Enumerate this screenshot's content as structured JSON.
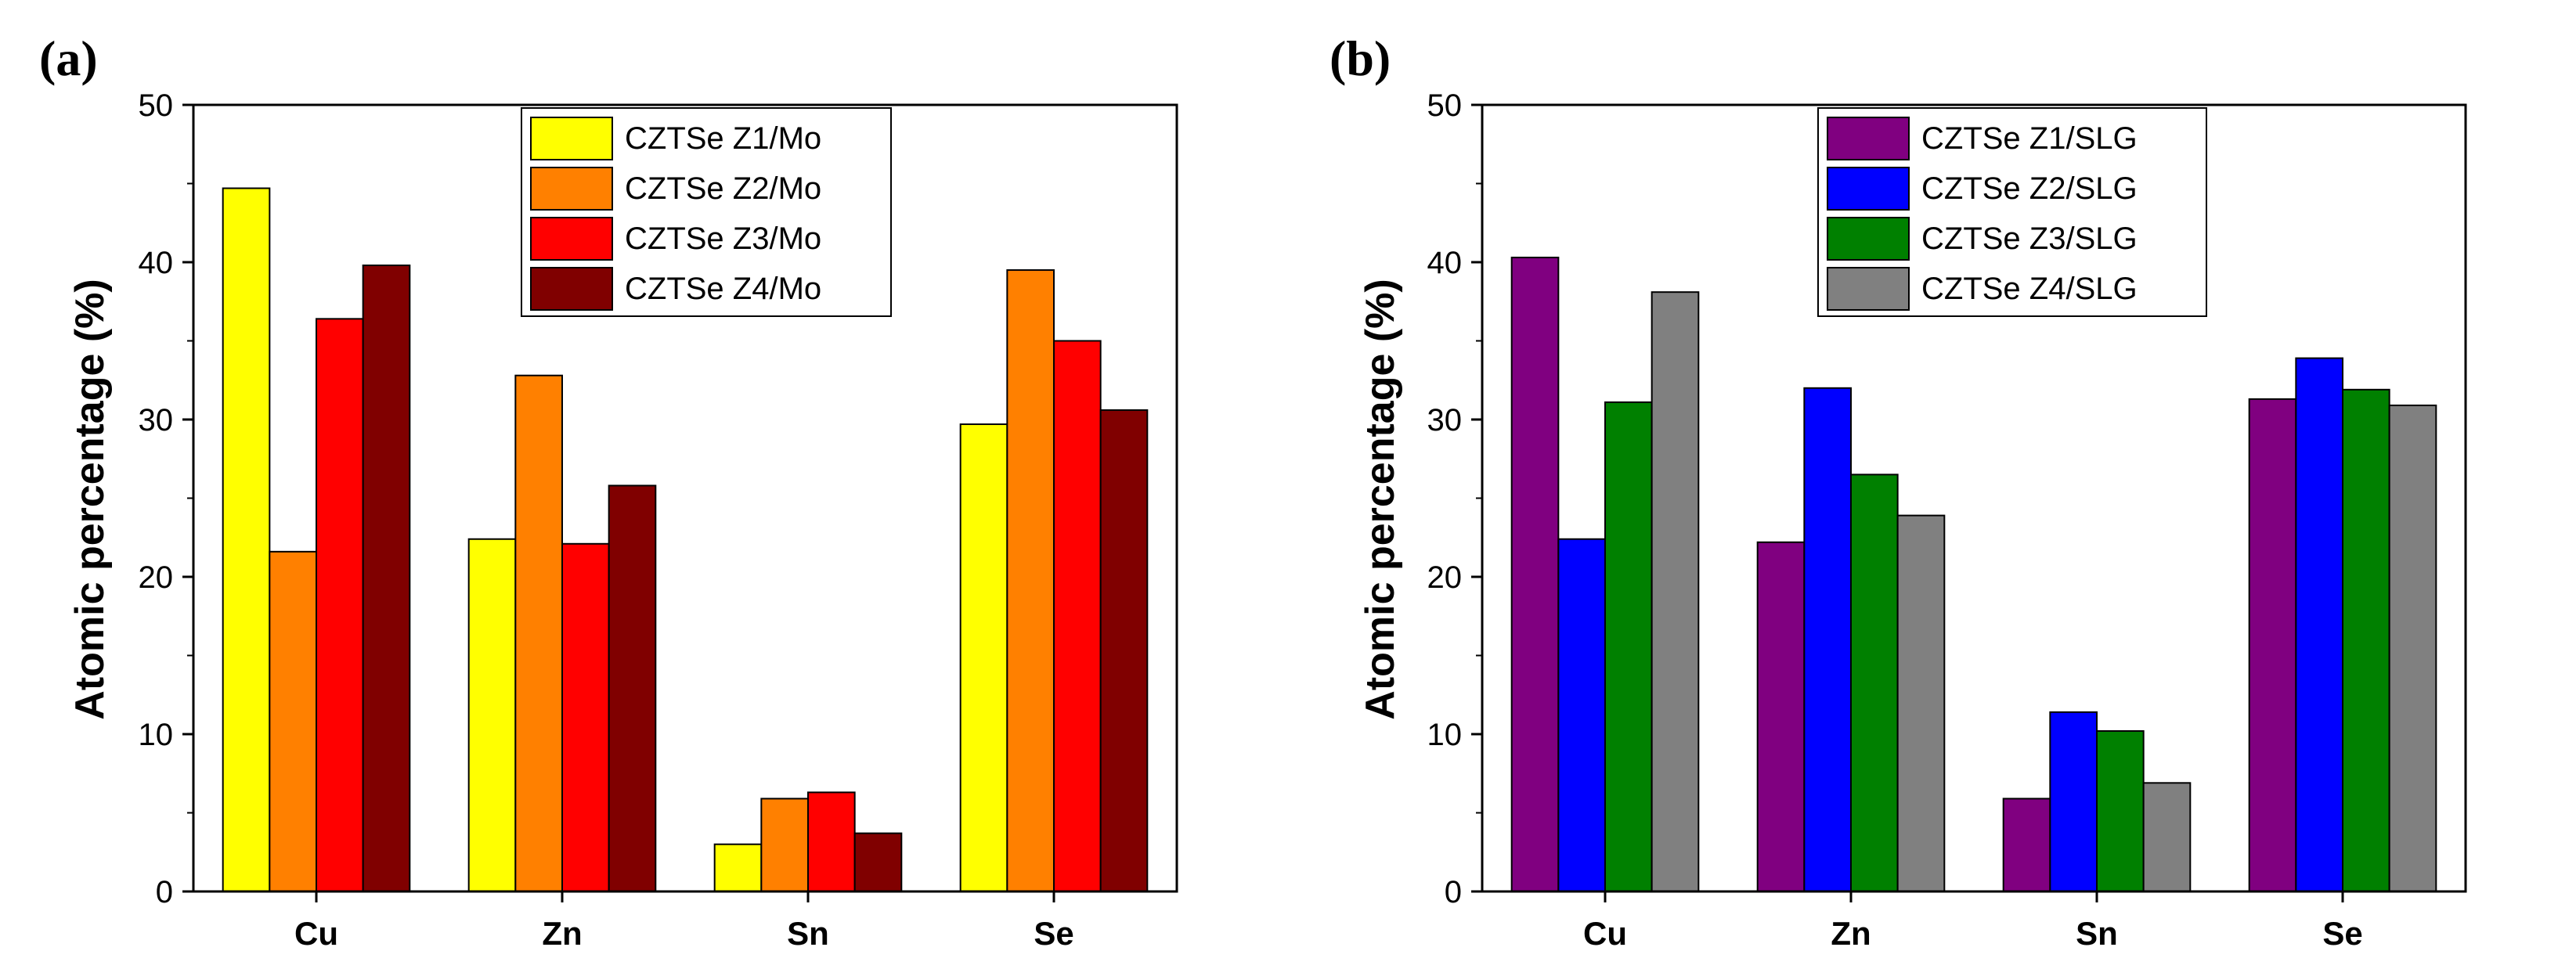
{
  "chart_data": [
    {
      "type": "bar",
      "panel_label": "(a)",
      "categories": [
        "Cu",
        "Zn",
        "Sn",
        "Se"
      ],
      "series": [
        {
          "name": "CZTSe Z1/Mo",
          "color": "#ffff00",
          "values": [
            44.7,
            22.4,
            3.0,
            29.7
          ]
        },
        {
          "name": "CZTSe Z2/Mo",
          "color": "#ff8000",
          "values": [
            21.6,
            32.8,
            5.9,
            39.5
          ]
        },
        {
          "name": "CZTSe Z3/Mo",
          "color": "#ff0000",
          "values": [
            36.4,
            22.1,
            6.3,
            35.0
          ]
        },
        {
          "name": "CZTSe Z4/Mo",
          "color": "#800000",
          "values": [
            39.8,
            25.8,
            3.7,
            30.6
          ]
        }
      ],
      "ylabel": "Atomic percentage (%)",
      "xlabel": "",
      "ylim": [
        0,
        50
      ],
      "yticks": [
        0,
        10,
        20,
        30,
        40,
        50
      ],
      "legend_position": "top-center"
    },
    {
      "type": "bar",
      "panel_label": "(b)",
      "categories": [
        "Cu",
        "Zn",
        "Sn",
        "Se"
      ],
      "series": [
        {
          "name": "CZTSe Z1/SLG",
          "color": "#800080",
          "values": [
            40.3,
            22.2,
            5.9,
            31.3
          ]
        },
        {
          "name": "CZTSe Z2/SLG",
          "color": "#0000ff",
          "values": [
            22.4,
            32.0,
            11.4,
            33.9
          ]
        },
        {
          "name": "CZTSe Z3/SLG",
          "color": "#008000",
          "values": [
            31.1,
            26.5,
            10.2,
            31.9
          ]
        },
        {
          "name": "CZTSe Z4/SLG",
          "color": "#808080",
          "values": [
            38.1,
            23.9,
            6.9,
            30.9
          ]
        }
      ],
      "ylabel": "Atomic percentage (%)",
      "xlabel": "",
      "ylim": [
        0,
        50
      ],
      "yticks": [
        0,
        10,
        20,
        30,
        40,
        50
      ],
      "legend_position": "top-center"
    }
  ]
}
